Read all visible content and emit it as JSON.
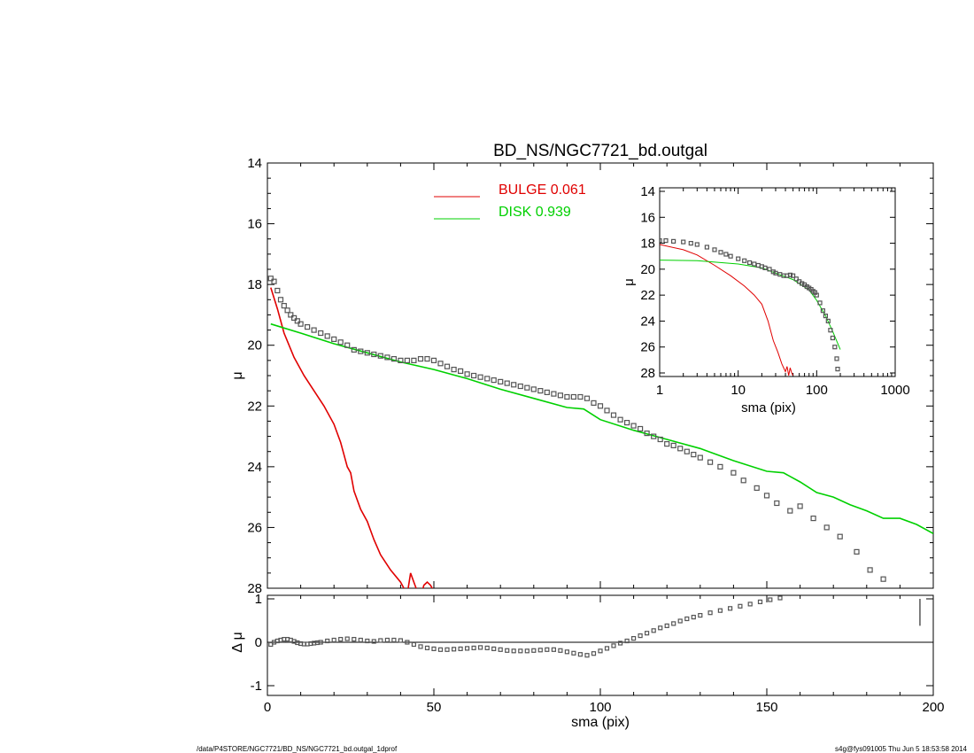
{
  "footer": {
    "left": "/data/P4STORE/NGC7721/BD_NS/NGC7721_bd.outgal_1dprof",
    "right": "s4g@fys091005  Thu Jun  5 18:53:58 2014"
  },
  "colors": {
    "bulge": "#e00000",
    "disk": "#00d000",
    "data": "#555555"
  },
  "chart_data": [
    {
      "type": "line",
      "panel": "main",
      "title": "BD_NS/NGC7721_bd.outgal",
      "xlabel": "sma (pix)",
      "ylabel": "μ",
      "xlim": [
        0,
        200
      ],
      "ylim": [
        28,
        14
      ],
      "xticks": [
        0,
        50,
        100,
        150,
        200
      ],
      "yticks": [
        14,
        16,
        18,
        20,
        22,
        24,
        26,
        28
      ],
      "legend": [
        {
          "label": "BULGE",
          "value": "0.061",
          "color": "#e00000"
        },
        {
          "label": "DISK",
          "value": "0.939",
          "color": "#00d000"
        }
      ],
      "series": [
        {
          "name": "BULGE",
          "style": "line",
          "color": "#e00000",
          "x": [
            1,
            3,
            5,
            8,
            11,
            14,
            17,
            20,
            22,
            24,
            25,
            26,
            28,
            30,
            32,
            34,
            37,
            40,
            42,
            43,
            44,
            45,
            46,
            47,
            48,
            49,
            50,
            51
          ],
          "y": [
            18.1,
            18.8,
            19.6,
            20.4,
            21.0,
            21.5,
            22.0,
            22.6,
            23.2,
            24.0,
            24.2,
            24.8,
            25.4,
            25.8,
            26.4,
            26.9,
            27.4,
            27.8,
            28.2,
            27.5,
            27.8,
            28.1,
            28.3,
            27.9,
            27.8,
            27.9,
            28.1,
            28.3
          ]
        },
        {
          "name": "DISK",
          "style": "line",
          "color": "#00d000",
          "x": [
            1,
            10,
            20,
            30,
            40,
            50,
            60,
            70,
            80,
            90,
            95,
            100,
            110,
            120,
            130,
            140,
            150,
            155,
            160,
            165,
            170,
            175,
            180,
            185,
            190,
            195,
            200
          ],
          "y": [
            19.3,
            19.6,
            19.95,
            20.25,
            20.55,
            20.8,
            21.1,
            21.45,
            21.75,
            22.05,
            22.1,
            22.45,
            22.8,
            23.1,
            23.4,
            23.8,
            24.15,
            24.2,
            24.5,
            24.85,
            25.0,
            25.25,
            25.45,
            25.7,
            25.7,
            25.9,
            26.2
          ]
        },
        {
          "name": "data",
          "style": "markers",
          "color": "#555555",
          "x": [
            1,
            2,
            3,
            4,
            5,
            6,
            7,
            8,
            9,
            10,
            12,
            14,
            16,
            18,
            20,
            22,
            24,
            26,
            28,
            30,
            32,
            34,
            36,
            38,
            40,
            42,
            44,
            46,
            48,
            50,
            52,
            54,
            56,
            58,
            60,
            62,
            64,
            66,
            68,
            70,
            72,
            74,
            76,
            78,
            80,
            82,
            84,
            86,
            88,
            90,
            92,
            94,
            96,
            98,
            100,
            102,
            104,
            106,
            108,
            110,
            112,
            114,
            116,
            118,
            120,
            122,
            124,
            126,
            128,
            130,
            133,
            136,
            140,
            143,
            147,
            150,
            153,
            157,
            160,
            164,
            168,
            172,
            177,
            181,
            185
          ],
          "y": [
            17.8,
            17.9,
            18.2,
            18.5,
            18.7,
            18.85,
            19.0,
            19.1,
            19.2,
            19.3,
            19.4,
            19.5,
            19.6,
            19.7,
            19.8,
            19.9,
            20.0,
            20.15,
            20.2,
            20.25,
            20.3,
            20.35,
            20.4,
            20.45,
            20.5,
            20.5,
            20.5,
            20.45,
            20.45,
            20.5,
            20.6,
            20.7,
            20.8,
            20.85,
            20.95,
            21.0,
            21.05,
            21.1,
            21.15,
            21.2,
            21.25,
            21.3,
            21.35,
            21.4,
            21.45,
            21.5,
            21.55,
            21.6,
            21.65,
            21.7,
            21.7,
            21.7,
            21.75,
            21.9,
            22.0,
            22.15,
            22.3,
            22.45,
            22.55,
            22.65,
            22.75,
            22.9,
            23.0,
            23.1,
            23.25,
            23.3,
            23.4,
            23.5,
            23.6,
            23.7,
            23.85,
            24.0,
            24.2,
            24.45,
            24.7,
            24.95,
            25.2,
            25.45,
            25.3,
            25.7,
            26.0,
            26.3,
            26.8,
            27.4,
            27.7
          ]
        }
      ]
    },
    {
      "type": "scatter",
      "panel": "residual",
      "xlabel": "sma (pix)",
      "ylabel": "Δ μ",
      "xlim": [
        0,
        200
      ],
      "ylim": [
        -1,
        1
      ],
      "xticks": [
        0,
        50,
        100,
        150,
        200
      ],
      "yticks": [
        -1,
        0,
        1
      ],
      "series": [
        {
          "name": "residual",
          "style": "markers",
          "color": "#555555",
          "x": [
            1,
            2,
            3,
            4,
            5,
            6,
            7,
            8,
            9,
            10,
            11,
            12,
            13,
            14,
            15,
            16,
            18,
            20,
            22,
            24,
            26,
            28,
            30,
            32,
            34,
            36,
            38,
            40,
            42,
            44,
            46,
            48,
            50,
            52,
            54,
            56,
            58,
            60,
            62,
            64,
            66,
            68,
            70,
            72,
            74,
            76,
            78,
            80,
            82,
            84,
            86,
            88,
            90,
            92,
            94,
            96,
            98,
            100,
            102,
            104,
            106,
            108,
            110,
            112,
            114,
            116,
            118,
            120,
            122,
            124,
            126,
            128,
            130,
            133,
            136,
            139,
            142,
            145,
            148,
            151,
            154
          ],
          "y": [
            -0.05,
            0.0,
            0.03,
            0.05,
            0.07,
            0.07,
            0.05,
            0.02,
            -0.01,
            -0.03,
            -0.04,
            -0.04,
            -0.03,
            -0.02,
            -0.01,
            0.0,
            0.03,
            0.05,
            0.07,
            0.08,
            0.07,
            0.05,
            0.03,
            0.02,
            0.04,
            0.05,
            0.05,
            0.04,
            0.0,
            -0.05,
            -0.1,
            -0.13,
            -0.15,
            -0.17,
            -0.17,
            -0.16,
            -0.15,
            -0.14,
            -0.13,
            -0.12,
            -0.13,
            -0.15,
            -0.17,
            -0.19,
            -0.2,
            -0.2,
            -0.2,
            -0.19,
            -0.18,
            -0.17,
            -0.17,
            -0.19,
            -0.22,
            -0.25,
            -0.28,
            -0.3,
            -0.26,
            -0.2,
            -0.14,
            -0.08,
            -0.02,
            0.03,
            0.09,
            0.15,
            0.21,
            0.27,
            0.33,
            0.38,
            0.43,
            0.49,
            0.54,
            0.58,
            0.62,
            0.68,
            0.73,
            0.78,
            0.83,
            0.88,
            0.93,
            0.98,
            1.02
          ]
        }
      ]
    },
    {
      "type": "line",
      "panel": "inset",
      "xlabel": "sma (pix)",
      "ylabel": "μ",
      "xscale": "log",
      "xlim": [
        1,
        1000
      ],
      "ylim": [
        28,
        14
      ],
      "xticks": [
        1,
        10,
        100,
        1000
      ],
      "xticklabels": [
        "1",
        "10",
        "100",
        "1000"
      ],
      "yticks": [
        14,
        16,
        18,
        20,
        22,
        24,
        26,
        28
      ],
      "series": [
        {
          "name": "BULGE",
          "style": "line",
          "color": "#e00000",
          "x": [
            1,
            2,
            3,
            5,
            8,
            12,
            16,
            20,
            24,
            28,
            32,
            36,
            40,
            42,
            44,
            46,
            48,
            50
          ],
          "y": [
            18.1,
            18.5,
            18.9,
            19.7,
            20.5,
            21.3,
            22.0,
            22.7,
            24.0,
            25.5,
            26.4,
            27.3,
            27.9,
            27.5,
            28.2,
            27.6,
            28.0,
            28.2
          ]
        },
        {
          "name": "DISK",
          "style": "line",
          "color": "#00d000",
          "x": [
            1,
            3,
            10,
            20,
            30,
            50,
            80,
            100,
            130,
            160,
            200
          ],
          "y": [
            19.3,
            19.35,
            19.6,
            19.9,
            20.3,
            20.8,
            21.6,
            22.4,
            23.6,
            24.8,
            26.2
          ]
        },
        {
          "name": "data",
          "style": "markers",
          "color": "#555555",
          "x": [
            1,
            1.2,
            1.5,
            2,
            2.5,
            3,
            4,
            5,
            6,
            7,
            8,
            10,
            12,
            14,
            16,
            18,
            20,
            22,
            25,
            28,
            30,
            34,
            38,
            42,
            46,
            50,
            55,
            60,
            65,
            70,
            75,
            80,
            85,
            90,
            95,
            100,
            110,
            120,
            130,
            140,
            150,
            160,
            170,
            180,
            185
          ],
          "y": [
            17.8,
            17.8,
            17.85,
            17.9,
            18.0,
            18.1,
            18.3,
            18.5,
            18.7,
            18.85,
            19.0,
            19.2,
            19.35,
            19.5,
            19.6,
            19.7,
            19.8,
            19.9,
            20.0,
            20.2,
            20.3,
            20.4,
            20.5,
            20.5,
            20.45,
            20.5,
            20.75,
            20.95,
            21.1,
            21.2,
            21.35,
            21.45,
            21.55,
            21.7,
            21.8,
            22.0,
            22.6,
            23.2,
            23.6,
            24.0,
            24.7,
            25.3,
            26.0,
            26.9,
            27.7
          ]
        }
      ]
    }
  ]
}
